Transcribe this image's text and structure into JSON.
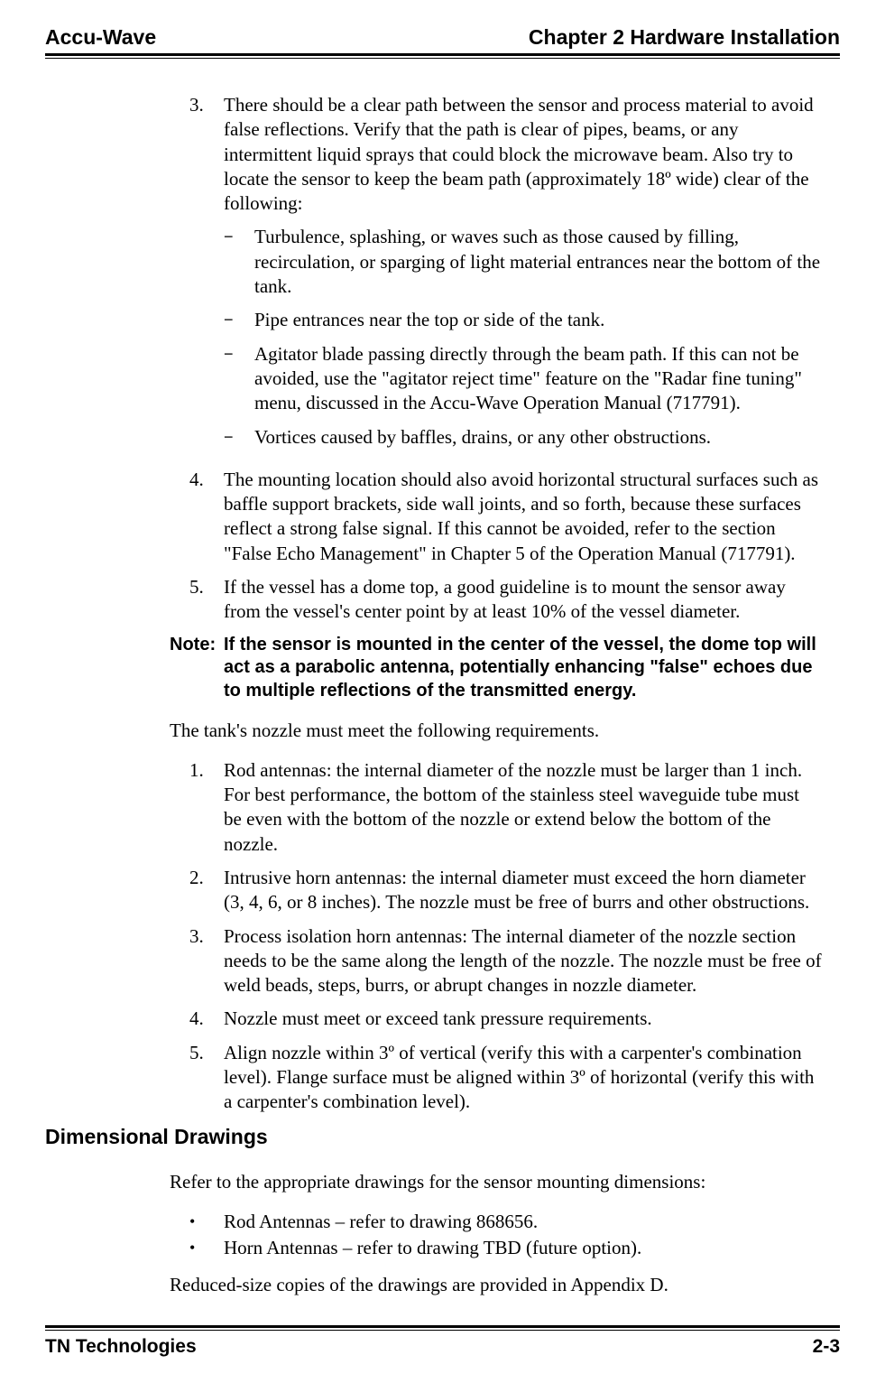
{
  "header": {
    "left": "Accu-Wave",
    "right": "Chapter 2  Hardware Installation"
  },
  "list1": {
    "item3": {
      "num": "3.",
      "text": "There should be a clear path between the sensor and process material to avoid false reflections. Verify that the path is clear of pipes, beams, or any intermittent liquid sprays that could block the microwave beam. Also try to locate the sensor to keep the beam path (approximately 18º wide) clear of the following:",
      "sub": {
        "a": "Turbulence, splashing, or waves such as those caused by filling, recirculation, or sparging of light material entrances near the bottom of the tank.",
        "b": "Pipe entrances near the top or side of the tank.",
        "c": "Agitator blade passing directly through the beam path. If this can not be avoided, use the \"agitator reject time\" feature on the \"Radar fine tuning\" menu, discussed in the Accu-Wave Operation Manual (717791).",
        "d": "Vortices caused by baffles, drains, or any other obstructions."
      }
    },
    "item4": {
      "num": "4.",
      "text": "The mounting location should also avoid horizontal structural surfaces such as baffle support brackets, side wall joints, and so forth, because these surfaces reflect a strong false signal. If this cannot be avoided, refer to the section \"False Echo Management\" in Chapter 5 of the Operation Manual (717791)."
    },
    "item5": {
      "num": "5.",
      "text": "If the vessel has a dome top, a good guideline is to mount the sensor away from the vessel's center point by at least 10% of the vessel diameter."
    }
  },
  "note": {
    "label": "Note:",
    "text": "If the sensor is mounted in the center of the vessel, the dome top will act as a parabolic antenna, potentially enhancing \"false\" echoes due to multiple reflections of the transmitted energy."
  },
  "para1": "The tank's nozzle must meet the following requirements.",
  "list2": {
    "item1": {
      "num": "1.",
      "text": "Rod antennas: the internal diameter of the nozzle must be larger than 1 inch. For best performance, the bottom of the stainless steel waveguide tube must be even with the bottom of the nozzle or extend below the bottom of the nozzle."
    },
    "item2": {
      "num": "2.",
      "text": "Intrusive horn antennas: the internal diameter must exceed the horn diameter (3, 4, 6, or 8 inches). The nozzle must be free of burrs and other obstructions."
    },
    "item3": {
      "num": "3.",
      "text": "Process isolation horn antennas: The internal diameter of the nozzle section needs to be the same along the length of the nozzle. The nozzle must be free of weld beads, steps, burrs, or abrupt changes in nozzle diameter."
    },
    "item4": {
      "num": "4.",
      "text": "Nozzle must meet or exceed tank pressure requirements."
    },
    "item5": {
      "num": "5.",
      "text": "Align nozzle within 3º of vertical (verify this with a carpenter's combination level). Flange surface must be aligned within 3º of horizontal (verify this with a carpenter's combination level)."
    }
  },
  "heading1": "Dimensional Drawings",
  "para2": "Refer to the appropriate drawings for the sensor mounting dimensions:",
  "bullets": {
    "b1": "Rod Antennas – refer to drawing 868656.",
    "b2": "Horn Antennas – refer to drawing TBD (future option)."
  },
  "para3": "Reduced-size copies of the drawings are provided in Appendix D.",
  "footer": {
    "left": "TN Technologies",
    "right": "2-3"
  }
}
